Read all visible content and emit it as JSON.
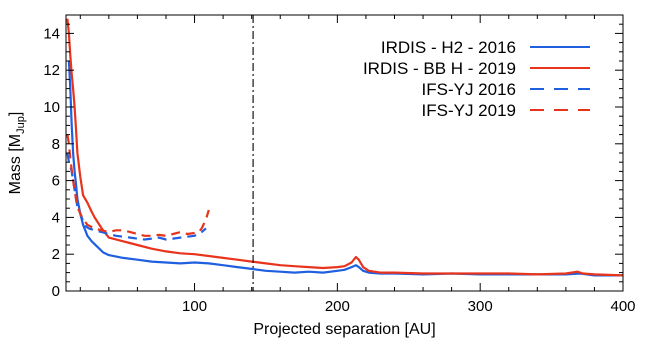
{
  "chart_data": {
    "type": "line",
    "title": "",
    "xlabel": "Projected separation [AU]",
    "ylabel": {
      "main": "Mass [M",
      "sub": "Jup",
      "close": "]"
    },
    "xlim": [
      10,
      400
    ],
    "ylim": [
      0,
      15
    ],
    "xticks": [
      100,
      200,
      300,
      400
    ],
    "yticks": [
      0,
      2,
      4,
      6,
      8,
      10,
      12,
      14
    ],
    "legend_position": "top-right",
    "vline": {
      "x": 141,
      "style": "dash-dot",
      "color": "#000000"
    },
    "series": [
      {
        "name": "IRDIS - H2 - 2016",
        "color": "#1f5fe0",
        "dash": "solid",
        "x": [
          12,
          13,
          14,
          15,
          16,
          17,
          18,
          20,
          22,
          25,
          28,
          32,
          36,
          40,
          50,
          60,
          70,
          80,
          90,
          100,
          110,
          120,
          130,
          140,
          150,
          160,
          170,
          180,
          190,
          200,
          205,
          210,
          213,
          215,
          218,
          222,
          230,
          240,
          260,
          280,
          300,
          320,
          340,
          360,
          370,
          380,
          400
        ],
        "y": [
          12.5,
          11.0,
          9.0,
          7.5,
          6.5,
          5.8,
          5.0,
          4.2,
          3.6,
          3.0,
          2.7,
          2.4,
          2.1,
          1.95,
          1.8,
          1.7,
          1.6,
          1.55,
          1.5,
          1.55,
          1.5,
          1.4,
          1.3,
          1.2,
          1.1,
          1.05,
          1.0,
          1.05,
          1.0,
          1.1,
          1.15,
          1.3,
          1.4,
          1.3,
          1.1,
          1.0,
          0.95,
          0.95,
          0.9,
          0.95,
          0.9,
          0.9,
          0.9,
          0.9,
          0.95,
          0.85,
          0.85
        ]
      },
      {
        "name": "IRDIS - BB H - 2019",
        "color": "#e8341c",
        "dash": "solid",
        "x": [
          11,
          12,
          13,
          14,
          15,
          16,
          17,
          18,
          20,
          22,
          25,
          28,
          30,
          35,
          40,
          50,
          60,
          70,
          80,
          90,
          100,
          110,
          120,
          130,
          140,
          150,
          160,
          170,
          180,
          190,
          200,
          205,
          210,
          213,
          215,
          218,
          222,
          230,
          240,
          260,
          280,
          300,
          320,
          340,
          360,
          368,
          372,
          380,
          400
        ],
        "y": [
          14.8,
          14.0,
          12.8,
          11.8,
          11.0,
          10.0,
          8.8,
          7.5,
          6.2,
          5.2,
          4.8,
          4.3,
          4.0,
          3.4,
          2.9,
          2.7,
          2.5,
          2.3,
          2.15,
          2.05,
          2.0,
          1.9,
          1.8,
          1.7,
          1.6,
          1.5,
          1.4,
          1.35,
          1.3,
          1.25,
          1.3,
          1.35,
          1.55,
          1.85,
          1.7,
          1.3,
          1.1,
          1.0,
          1.0,
          0.95,
          0.95,
          0.95,
          0.95,
          0.9,
          0.95,
          1.05,
          0.95,
          0.9,
          0.85
        ]
      },
      {
        "name": "IFS-YJ 2016",
        "color": "#1f5fe0",
        "dash": "dashed",
        "x": [
          11,
          12,
          13,
          14,
          15,
          16,
          17,
          18,
          20,
          22,
          24,
          26,
          30,
          35,
          40,
          45,
          50,
          55,
          60,
          65,
          70,
          75,
          80,
          85,
          90,
          95,
          100,
          105,
          108
        ],
        "y": [
          7.5,
          7.0,
          6.8,
          6.5,
          6.0,
          5.5,
          5.0,
          4.6,
          4.2,
          3.8,
          3.5,
          3.4,
          3.3,
          3.2,
          3.1,
          3.0,
          2.95,
          2.9,
          2.85,
          2.8,
          2.85,
          2.9,
          2.8,
          2.85,
          2.9,
          2.95,
          3.0,
          3.2,
          3.4
        ]
      },
      {
        "name": "IFS-YJ 2019",
        "color": "#e8341c",
        "dash": "dashed",
        "x": [
          11,
          12,
          13,
          14,
          15,
          16,
          17,
          18,
          20,
          22,
          25,
          30,
          35,
          40,
          45,
          50,
          55,
          60,
          65,
          70,
          75,
          80,
          85,
          90,
          95,
          100,
          103,
          105,
          108,
          110
        ],
        "y": [
          8.5,
          8.0,
          7.2,
          6.6,
          6.0,
          5.5,
          5.0,
          4.6,
          4.2,
          3.9,
          3.6,
          3.4,
          3.3,
          3.2,
          3.3,
          3.3,
          3.2,
          3.1,
          3.0,
          3.0,
          3.05,
          3.0,
          3.1,
          3.2,
          3.1,
          3.15,
          3.2,
          3.4,
          3.9,
          4.4
        ]
      }
    ]
  }
}
